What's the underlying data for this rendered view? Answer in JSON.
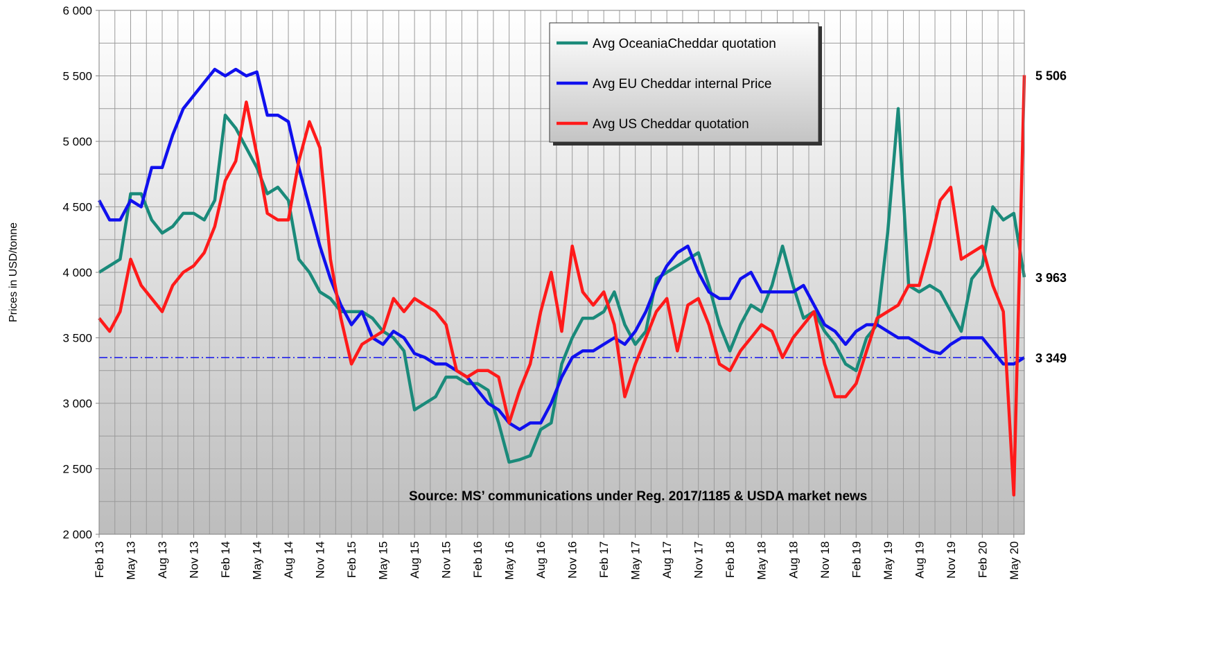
{
  "chart_data": {
    "type": "line",
    "y_label": "Prices in USD/tonne",
    "annotation": "Source: MS’ communications under Reg. 2017/1185  & USDA market news",
    "categories": [
      "Feb 13",
      null,
      null,
      "May 13",
      null,
      null,
      "Aug 13",
      null,
      null,
      "Nov 13",
      null,
      null,
      "Feb 14",
      null,
      null,
      "May 14",
      null,
      null,
      "Aug 14",
      null,
      null,
      "Nov 14",
      null,
      null,
      "Feb 15",
      null,
      null,
      "May 15",
      null,
      null,
      "Aug 15",
      null,
      null,
      "Nov 15",
      null,
      null,
      "Feb 16",
      null,
      null,
      "May 16",
      null,
      null,
      "Aug 16",
      null,
      null,
      "Nov 16",
      null,
      null,
      "Feb 17",
      null,
      null,
      "May 17",
      null,
      null,
      "Aug 17",
      null,
      null,
      "Nov 17",
      null,
      null,
      "Feb 18",
      null,
      null,
      "May 18",
      null,
      null,
      "Aug 18",
      null,
      null,
      "Nov 18",
      null,
      null,
      "Feb 19",
      null,
      null,
      "May 19",
      null,
      null,
      "Aug 19",
      null,
      null,
      "Nov 19",
      null,
      null,
      "Feb 20",
      null,
      null,
      "May 20",
      null
    ],
    "ylim": [
      2000,
      6000
    ],
    "yticks": [
      {
        "value": 2000,
        "label": "2 000"
      },
      {
        "value": 2500,
        "label": "2 500"
      },
      {
        "value": 3000,
        "label": "3 000"
      },
      {
        "value": 3500,
        "label": "3 500"
      },
      {
        "value": 4000,
        "label": "4 000"
      },
      {
        "value": 4500,
        "label": "4 500"
      },
      {
        "value": 5000,
        "label": "5 000"
      },
      {
        "value": 5500,
        "label": "5 500"
      },
      {
        "value": 6000,
        "label": "6 000"
      }
    ],
    "grid": true,
    "legend": "top-right",
    "series": [
      {
        "name": "Avg OceaniaCheddar quotation",
        "color": "#1a8a7a",
        "values": [
          4000,
          4050,
          4100,
          4600,
          4600,
          4400,
          4300,
          4350,
          4450,
          4450,
          4400,
          4550,
          5200,
          5100,
          4950,
          4800,
          4600,
          4650,
          4550,
          4100,
          4000,
          3850,
          3800,
          3700,
          3700,
          3700,
          3650,
          3550,
          3500,
          3400,
          2950,
          3000,
          3050,
          3200,
          3200,
          3150,
          3150,
          3100,
          2850,
          2550,
          2570,
          2600,
          2800,
          2850,
          3300,
          3500,
          3650,
          3650,
          3700,
          3850,
          3600,
          3450,
          3550,
          3950,
          4000,
          4050,
          4100,
          4150,
          3900,
          3600,
          3400,
          3600,
          3750,
          3700,
          3900,
          4200,
          3900,
          3650,
          3700,
          3550,
          3450,
          3300,
          3250,
          3500,
          3600,
          4300,
          5250,
          3900,
          3850,
          3900,
          3850,
          3700,
          3550,
          3950,
          4050,
          4500,
          4400,
          4450,
          3963
        ],
        "value_labels": [
          null,
          null,
          null,
          null,
          null,
          null,
          null,
          null,
          null,
          null,
          null,
          null,
          null,
          null,
          null,
          null,
          null,
          null,
          null,
          null,
          null,
          null,
          null,
          null,
          null,
          null,
          null,
          null,
          null,
          null,
          null,
          null,
          null,
          null,
          null,
          null,
          null,
          null,
          null,
          null,
          null,
          null,
          null,
          null,
          null,
          null,
          null,
          null,
          null,
          null,
          null,
          null,
          null,
          null,
          null,
          null,
          null,
          null,
          null,
          null,
          null,
          null,
          null,
          null,
          null,
          null,
          null,
          null,
          null,
          null,
          null,
          null,
          null,
          null,
          null,
          null,
          null,
          null,
          null,
          null,
          null,
          null,
          null,
          null,
          null,
          null,
          null,
          null,
          "3 963"
        ]
      },
      {
        "name": "Avg EU Cheddar internal Price",
        "color": "#1010ee",
        "values": [
          4550,
          4400,
          4400,
          4550,
          4500,
          4800,
          4800,
          5050,
          5250,
          5350,
          5450,
          5550,
          5500,
          5550,
          5500,
          5530,
          5200,
          5200,
          5150,
          4800,
          4500,
          4200,
          3950,
          3750,
          3600,
          3700,
          3500,
          3450,
          3550,
          3500,
          3380,
          3350,
          3300,
          3300,
          3250,
          3200,
          3100,
          3000,
          2950,
          2850,
          2800,
          2850,
          2850,
          3000,
          3200,
          3350,
          3400,
          3400,
          3450,
          3500,
          3450,
          3550,
          3700,
          3900,
          4050,
          4150,
          4200,
          4000,
          3850,
          3800,
          3800,
          3950,
          4000,
          3850,
          3850,
          3850,
          3850,
          3900,
          3750,
          3600,
          3550,
          3450,
          3550,
          3600,
          3600,
          3550,
          3500,
          3500,
          3450,
          3400,
          3380,
          3450,
          3500,
          3500,
          3500,
          3400,
          3300,
          3300,
          3349
        ],
        "value_labels": [
          null,
          null,
          null,
          null,
          null,
          null,
          null,
          null,
          null,
          null,
          null,
          null,
          null,
          null,
          null,
          null,
          null,
          null,
          null,
          null,
          null,
          null,
          null,
          null,
          null,
          null,
          null,
          null,
          null,
          null,
          null,
          null,
          null,
          null,
          null,
          null,
          null,
          null,
          null,
          null,
          null,
          null,
          null,
          null,
          null,
          null,
          null,
          null,
          null,
          null,
          null,
          null,
          null,
          null,
          null,
          null,
          null,
          null,
          null,
          null,
          null,
          null,
          null,
          null,
          null,
          null,
          null,
          null,
          null,
          null,
          null,
          null,
          null,
          null,
          null,
          null,
          null,
          null,
          null,
          null,
          null,
          null,
          null,
          null,
          null,
          null,
          null,
          null,
          "3 349"
        ]
      },
      {
        "name": "Avg US Cheddar quotation",
        "color": "#ff1a1a",
        "values": [
          3650,
          3550,
          3700,
          4100,
          3900,
          3800,
          3700,
          3900,
          4000,
          4050,
          4150,
          4350,
          4700,
          4850,
          5300,
          4900,
          4450,
          4400,
          4400,
          4850,
          5150,
          4950,
          4100,
          3650,
          3300,
          3450,
          3500,
          3550,
          3800,
          3700,
          3800,
          3750,
          3700,
          3600,
          3250,
          3200,
          3250,
          3250,
          3200,
          2850,
          3100,
          3300,
          3700,
          4000,
          3550,
          4200,
          3850,
          3750,
          3850,
          3600,
          3050,
          3300,
          3500,
          3700,
          3800,
          3400,
          3750,
          3800,
          3600,
          3300,
          3250,
          3400,
          3500,
          3600,
          3550,
          3350,
          3500,
          3600,
          3700,
          3300,
          3050,
          3050,
          3150,
          3400,
          3650,
          3700,
          3750,
          3900,
          3900,
          4200,
          4550,
          4650,
          4100,
          4150,
          4200,
          3900,
          3700,
          2300,
          5506
        ],
        "value_labels": [
          null,
          null,
          null,
          null,
          null,
          null,
          null,
          null,
          null,
          null,
          null,
          null,
          null,
          null,
          null,
          null,
          null,
          null,
          null,
          null,
          null,
          null,
          null,
          null,
          null,
          null,
          null,
          null,
          null,
          null,
          null,
          null,
          null,
          null,
          null,
          null,
          null,
          null,
          null,
          null,
          null,
          null,
          null,
          null,
          null,
          null,
          null,
          null,
          null,
          null,
          null,
          null,
          null,
          null,
          null,
          null,
          null,
          null,
          null,
          null,
          null,
          null,
          null,
          null,
          null,
          null,
          null,
          null,
          null,
          null,
          null,
          null,
          null,
          null,
          null,
          null,
          null,
          null,
          null,
          null,
          null,
          null,
          null,
          null,
          null,
          null,
          null,
          null,
          "5 506"
        ]
      }
    ]
  }
}
